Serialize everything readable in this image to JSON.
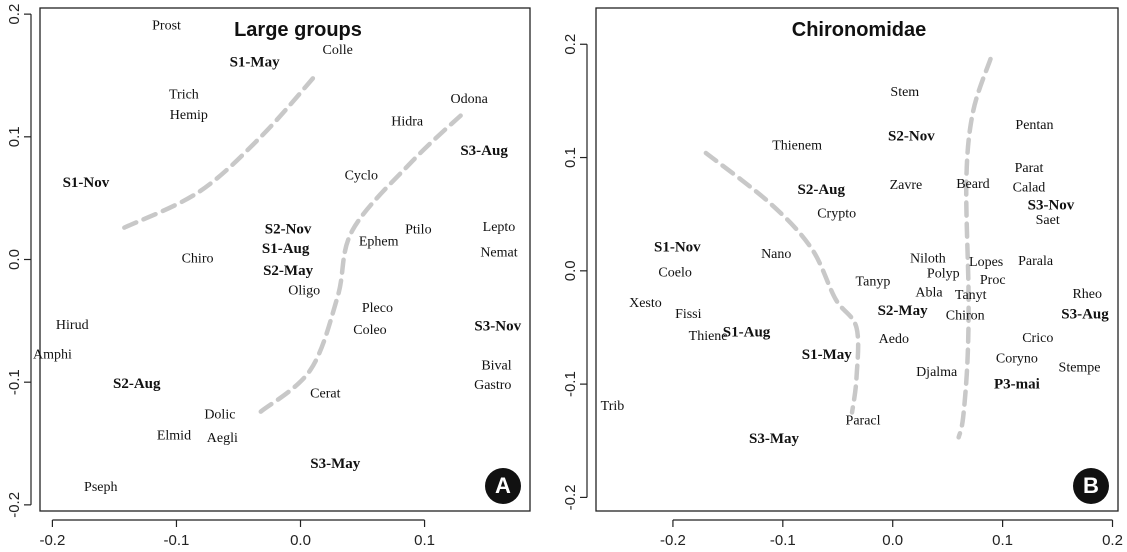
{
  "chart_data": [
    {
      "type": "scatter",
      "title": "Large groups",
      "badge": "A",
      "xlim": [
        -0.21,
        0.185
      ],
      "ylim": [
        -0.205,
        0.205
      ],
      "xticks": [
        -0.2,
        -0.1,
        0.0,
        0.1
      ],
      "xtick_labels": [
        "-0.2",
        "-0.1",
        "0.0",
        "0.1"
      ],
      "yticks": [
        -0.2,
        -0.1,
        0.0,
        0.1,
        0.2
      ],
      "ytick_labels": [
        "-0.2",
        "-0.1",
        "0.0",
        "0.1",
        "0.2"
      ],
      "points": [
        {
          "label": "Prost",
          "x": -0.108,
          "y": 0.19,
          "bold": false
        },
        {
          "label": "Colle",
          "x": 0.03,
          "y": 0.17,
          "bold": false
        },
        {
          "label": "S1-May",
          "x": -0.037,
          "y": 0.16,
          "bold": true
        },
        {
          "label": "Trich",
          "x": -0.094,
          "y": 0.134,
          "bold": false
        },
        {
          "label": "Hemip",
          "x": -0.09,
          "y": 0.117,
          "bold": false
        },
        {
          "label": "Odona",
          "x": 0.136,
          "y": 0.13,
          "bold": false
        },
        {
          "label": "Hidra",
          "x": 0.086,
          "y": 0.112,
          "bold": false
        },
        {
          "label": "S3-Aug",
          "x": 0.148,
          "y": 0.088,
          "bold": true
        },
        {
          "label": "S1-Nov",
          "x": -0.173,
          "y": 0.062,
          "bold": true
        },
        {
          "label": "Cyclo",
          "x": 0.049,
          "y": 0.068,
          "bold": false
        },
        {
          "label": "S2-Nov",
          "x": -0.01,
          "y": 0.024,
          "bold": true
        },
        {
          "label": "S1-Aug",
          "x": -0.012,
          "y": 0.008,
          "bold": true
        },
        {
          "label": "S2-May",
          "x": -0.01,
          "y": -0.01,
          "bold": true
        },
        {
          "label": "Ptilo",
          "x": 0.095,
          "y": 0.024,
          "bold": false
        },
        {
          "label": "Ephem",
          "x": 0.063,
          "y": 0.014,
          "bold": false
        },
        {
          "label": "Lepto",
          "x": 0.16,
          "y": 0.026,
          "bold": false
        },
        {
          "label": "Nemat",
          "x": 0.16,
          "y": 0.005,
          "bold": false
        },
        {
          "label": "Chiro",
          "x": -0.083,
          "y": 0.0,
          "bold": false
        },
        {
          "label": "Oligo",
          "x": 0.003,
          "y": -0.026,
          "bold": false
        },
        {
          "label": "Pleco",
          "x": 0.062,
          "y": -0.04,
          "bold": false
        },
        {
          "label": "Coleo",
          "x": 0.056,
          "y": -0.058,
          "bold": false
        },
        {
          "label": "Hirud",
          "x": -0.184,
          "y": -0.054,
          "bold": false
        },
        {
          "label": "S3-Nov",
          "x": 0.159,
          "y": -0.055,
          "bold": true
        },
        {
          "label": "Amphi",
          "x": -0.2,
          "y": -0.078,
          "bold": false
        },
        {
          "label": "Bival",
          "x": 0.158,
          "y": -0.087,
          "bold": false
        },
        {
          "label": "Gastro",
          "x": 0.155,
          "y": -0.103,
          "bold": false
        },
        {
          "label": "S2-Aug",
          "x": -0.132,
          "y": -0.102,
          "bold": true
        },
        {
          "label": "Cerat",
          "x": 0.02,
          "y": -0.11,
          "bold": false
        },
        {
          "label": "Dolic",
          "x": -0.065,
          "y": -0.127,
          "bold": false
        },
        {
          "label": "Elmid",
          "x": -0.102,
          "y": -0.144,
          "bold": false
        },
        {
          "label": "Aegli",
          "x": -0.063,
          "y": -0.146,
          "bold": false
        },
        {
          "label": "S3-May",
          "x": 0.028,
          "y": -0.167,
          "bold": true
        },
        {
          "label": "Pseph",
          "x": -0.161,
          "y": -0.186,
          "bold": false
        }
      ],
      "curves": [
        [
          [
            -0.142,
            0.026
          ],
          [
            -0.082,
            0.055
          ],
          [
            -0.032,
            0.1
          ],
          [
            0.012,
            0.15
          ]
        ],
        [
          [
            -0.032,
            -0.124
          ],
          [
            0.008,
            -0.09
          ],
          [
            0.03,
            -0.03
          ],
          [
            0.042,
            0.024
          ],
          [
            0.09,
            0.08
          ],
          [
            0.132,
            0.12
          ]
        ]
      ]
    },
    {
      "type": "scatter",
      "title": "Chironomidae",
      "badge": "B",
      "xlim": [
        -0.27,
        0.205
      ],
      "ylim": [
        -0.212,
        0.232
      ],
      "xticks": [
        -0.2,
        -0.1,
        0.0,
        0.1,
        0.2
      ],
      "xtick_labels": [
        "-0.2",
        "-0.1",
        "0.0",
        "0.1",
        "0.2"
      ],
      "yticks": [
        -0.2,
        -0.1,
        0.0,
        0.1,
        0.2
      ],
      "ytick_labels": [
        "-0.2",
        "-0.1",
        "0.0",
        "0.1",
        "0.2"
      ],
      "points": [
        {
          "label": "Stem",
          "x": 0.011,
          "y": 0.157,
          "bold": false
        },
        {
          "label": "Pentan",
          "x": 0.129,
          "y": 0.128,
          "bold": false
        },
        {
          "label": "Thienem",
          "x": -0.087,
          "y": 0.11,
          "bold": false
        },
        {
          "label": "S2-Nov",
          "x": 0.017,
          "y": 0.118,
          "bold": true
        },
        {
          "label": "Parat",
          "x": 0.124,
          "y": 0.09,
          "bold": false
        },
        {
          "label": "S2-Aug",
          "x": -0.065,
          "y": 0.071,
          "bold": true
        },
        {
          "label": "Zavre",
          "x": 0.012,
          "y": 0.075,
          "bold": false
        },
        {
          "label": "Beard",
          "x": 0.073,
          "y": 0.076,
          "bold": false
        },
        {
          "label": "Calad",
          "x": 0.124,
          "y": 0.073,
          "bold": false
        },
        {
          "label": "S3-Nov",
          "x": 0.144,
          "y": 0.057,
          "bold": true
        },
        {
          "label": "Crypto",
          "x": -0.051,
          "y": 0.05,
          "bold": false
        },
        {
          "label": "Saet",
          "x": 0.141,
          "y": 0.044,
          "bold": false
        },
        {
          "label": "S1-Nov",
          "x": -0.196,
          "y": 0.02,
          "bold": true
        },
        {
          "label": "Nano",
          "x": -0.106,
          "y": 0.014,
          "bold": false
        },
        {
          "label": "Niloth",
          "x": 0.032,
          "y": 0.01,
          "bold": false
        },
        {
          "label": "Lopes",
          "x": 0.085,
          "y": 0.007,
          "bold": false
        },
        {
          "label": "Parala",
          "x": 0.13,
          "y": 0.008,
          "bold": false
        },
        {
          "label": "Coelo",
          "x": -0.198,
          "y": -0.002,
          "bold": false
        },
        {
          "label": "Polyp",
          "x": 0.046,
          "y": -0.003,
          "bold": false
        },
        {
          "label": "Proc",
          "x": 0.091,
          "y": -0.009,
          "bold": false
        },
        {
          "label": "Tanyp",
          "x": -0.018,
          "y": -0.01,
          "bold": false
        },
        {
          "label": "Abla",
          "x": 0.033,
          "y": -0.02,
          "bold": false
        },
        {
          "label": "Tanyt",
          "x": 0.071,
          "y": -0.022,
          "bold": false
        },
        {
          "label": "Rheo",
          "x": 0.177,
          "y": -0.021,
          "bold": false
        },
        {
          "label": "Xesto",
          "x": -0.225,
          "y": -0.029,
          "bold": false
        },
        {
          "label": "Fissi",
          "x": -0.186,
          "y": -0.039,
          "bold": false
        },
        {
          "label": "S2-May",
          "x": 0.009,
          "y": -0.036,
          "bold": true
        },
        {
          "label": "S3-Aug",
          "x": 0.175,
          "y": -0.039,
          "bold": true
        },
        {
          "label": "Chiron",
          "x": 0.066,
          "y": -0.04,
          "bold": false
        },
        {
          "label": "S1-Aug",
          "x": -0.133,
          "y": -0.055,
          "bold": true
        },
        {
          "label": "Thiene",
          "x": -0.168,
          "y": -0.058,
          "bold": false
        },
        {
          "label": "Crico",
          "x": 0.132,
          "y": -0.06,
          "bold": false
        },
        {
          "label": "Aedo",
          "x": 0.001,
          "y": -0.061,
          "bold": false
        },
        {
          "label": "S1-May",
          "x": -0.06,
          "y": -0.075,
          "bold": true
        },
        {
          "label": "Coryno",
          "x": 0.113,
          "y": -0.078,
          "bold": false
        },
        {
          "label": "Stempe",
          "x": 0.17,
          "y": -0.086,
          "bold": false
        },
        {
          "label": "Djalma",
          "x": 0.04,
          "y": -0.09,
          "bold": false
        },
        {
          "label": "P3-mai",
          "x": 0.113,
          "y": -0.101,
          "bold": true
        },
        {
          "label": "Trib",
          "x": -0.255,
          "y": -0.12,
          "bold": false
        },
        {
          "label": "Paracl",
          "x": -0.027,
          "y": -0.133,
          "bold": false
        },
        {
          "label": "S3-May",
          "x": -0.108,
          "y": -0.149,
          "bold": true
        }
      ],
      "curves": [
        [
          [
            -0.17,
            0.104
          ],
          [
            -0.112,
            0.06
          ],
          [
            -0.074,
            0.02
          ],
          [
            -0.052,
            -0.025
          ],
          [
            -0.033,
            -0.05
          ],
          [
            -0.033,
            -0.095
          ],
          [
            -0.037,
            -0.125
          ]
        ],
        [
          [
            0.089,
            0.187
          ],
          [
            0.073,
            0.14
          ],
          [
            0.067,
            0.08
          ],
          [
            0.069,
            -0.02
          ],
          [
            0.068,
            -0.08
          ],
          [
            0.064,
            -0.13
          ],
          [
            0.06,
            -0.147
          ]
        ]
      ]
    }
  ]
}
